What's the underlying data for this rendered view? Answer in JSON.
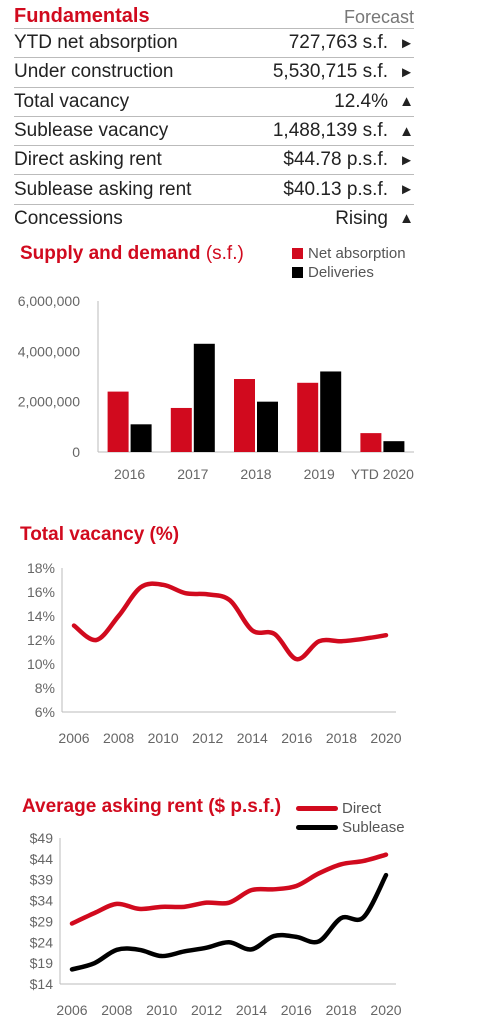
{
  "fundamentals": {
    "title": "Fundamentals",
    "forecast_label": "Forecast",
    "rows": [
      {
        "label": "YTD net absorption",
        "value": "727,763 s.f.",
        "arrow": "►"
      },
      {
        "label": "Under construction",
        "value": "5,530,715 s.f.",
        "arrow": "►"
      },
      {
        "label": "Total vacancy",
        "value": "12.4%",
        "arrow": "▲"
      },
      {
        "label": "Sublease vacancy",
        "value": "1,488,139 s.f.",
        "arrow": "▲"
      },
      {
        "label": "Direct asking rent",
        "value": "$44.78 p.s.f.",
        "arrow": "►"
      },
      {
        "label": "Sublease asking rent",
        "value": "$40.13 p.s.f.",
        "arrow": "►"
      },
      {
        "label": "Concessions",
        "value": "Rising",
        "arrow": "▲"
      }
    ]
  },
  "chart_data": [
    {
      "type": "bar",
      "title": "Supply and demand",
      "title_unit": "(s.f.)",
      "categories": [
        "2016",
        "2017",
        "2018",
        "2019",
        "YTD 2020"
      ],
      "series": [
        {
          "name": "Net absorption",
          "color": "#d10a1e",
          "values": [
            2400000,
            1750000,
            2900000,
            2750000,
            750000
          ]
        },
        {
          "name": "Deliveries",
          "color": "#000000",
          "values": [
            1100000,
            4300000,
            2000000,
            3200000,
            430000
          ]
        }
      ],
      "yticks": [
        "6,000,000",
        "4,000,000",
        "2,000,000",
        "0"
      ],
      "ylim": [
        0,
        6000000
      ],
      "legend": "top-right",
      "grid": false
    },
    {
      "type": "line",
      "title": "Total vacancy (%)",
      "x": [
        2006,
        2007,
        2008,
        2009,
        2010,
        2011,
        2012,
        2013,
        2014,
        2015,
        2016,
        2017,
        2018,
        2019,
        2020
      ],
      "series": [
        {
          "color": "#d10a1e",
          "values": [
            13.2,
            12.0,
            14.0,
            16.4,
            16.6,
            15.9,
            15.8,
            15.3,
            12.8,
            12.5,
            10.4,
            11.9,
            11.9,
            12.1,
            12.4
          ]
        }
      ],
      "xticks": [
        "2006",
        "2008",
        "2010",
        "2012",
        "2014",
        "2016",
        "2018",
        "2020"
      ],
      "yticks": [
        "18%",
        "16%",
        "14%",
        "12%",
        "10%",
        "8%",
        "6%"
      ],
      "ylim": [
        6,
        18
      ],
      "grid": false
    },
    {
      "type": "line",
      "title": "Average asking rent ($ p.s.f.)",
      "x": [
        2006,
        2007,
        2008,
        2009,
        2010,
        2011,
        2012,
        2013,
        2014,
        2015,
        2016,
        2017,
        2018,
        2019,
        2020
      ],
      "series": [
        {
          "name": "Direct",
          "color": "#d10a1e",
          "values": [
            28.5,
            31.0,
            33.2,
            32.0,
            32.5,
            32.5,
            33.5,
            33.5,
            36.5,
            36.7,
            37.5,
            40.5,
            42.7,
            43.5,
            45.0
          ]
        },
        {
          "name": "Sublease",
          "color": "#000000",
          "values": [
            17.5,
            19.0,
            22.2,
            22.2,
            20.7,
            21.8,
            22.7,
            24.0,
            22.3,
            25.5,
            25.3,
            24.2,
            29.8,
            30.0,
            40.1
          ]
        }
      ],
      "xticks": [
        "2006",
        "2008",
        "2010",
        "2012",
        "2014",
        "2016",
        "2018",
        "2020"
      ],
      "yticks": [
        "$49",
        "$44",
        "$39",
        "$34",
        "$29",
        "$24",
        "$19",
        "$14"
      ],
      "ylim": [
        14,
        49
      ],
      "legend": "top-right",
      "grid": false
    }
  ]
}
